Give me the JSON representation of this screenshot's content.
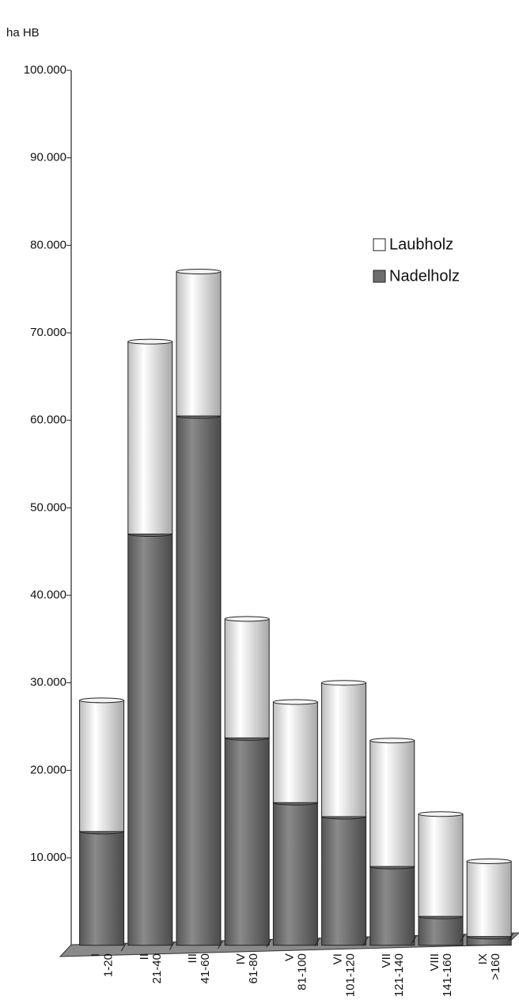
{
  "chart_data": {
    "type": "bar",
    "stacked": true,
    "y_label": "ha HB",
    "categories": [
      [
        "I",
        "1-20"
      ],
      [
        "II",
        "21-40"
      ],
      [
        "III",
        "41-60"
      ],
      [
        "IV",
        "61-80"
      ],
      [
        "V",
        "81-100"
      ],
      [
        "VI",
        "101-120"
      ],
      [
        "VII",
        "121-140"
      ],
      [
        "VIII",
        "141-160"
      ],
      [
        "IX",
        ">160"
      ]
    ],
    "series": [
      {
        "name": "Laubholz",
        "color": "#f2f2f2",
        "values": [
          15000,
          22000,
          16500,
          13600,
          11500,
          15300,
          14400,
          11700,
          8600
        ]
      },
      {
        "name": "Nadelholz",
        "color": "#6e6e6e",
        "values": [
          13000,
          47000,
          60500,
          23700,
          16300,
          14700,
          9000,
          3300,
          1000
        ]
      }
    ],
    "ylim": [
      0,
      100000
    ],
    "yticks": [
      {
        "value": 10000,
        "label": "10.000"
      },
      {
        "value": 20000,
        "label": "20.000"
      },
      {
        "value": 30000,
        "label": "30.000"
      },
      {
        "value": 40000,
        "label": "40.000"
      },
      {
        "value": 50000,
        "label": "50.000"
      },
      {
        "value": 60000,
        "label": "60.000"
      },
      {
        "value": 70000,
        "label": "70.000"
      },
      {
        "value": 80000,
        "label": "80.000"
      },
      {
        "value": 90000,
        "label": "90.000"
      },
      {
        "value": 100000,
        "label": "100.000"
      }
    ],
    "legend": "upper right",
    "grid": false
  }
}
